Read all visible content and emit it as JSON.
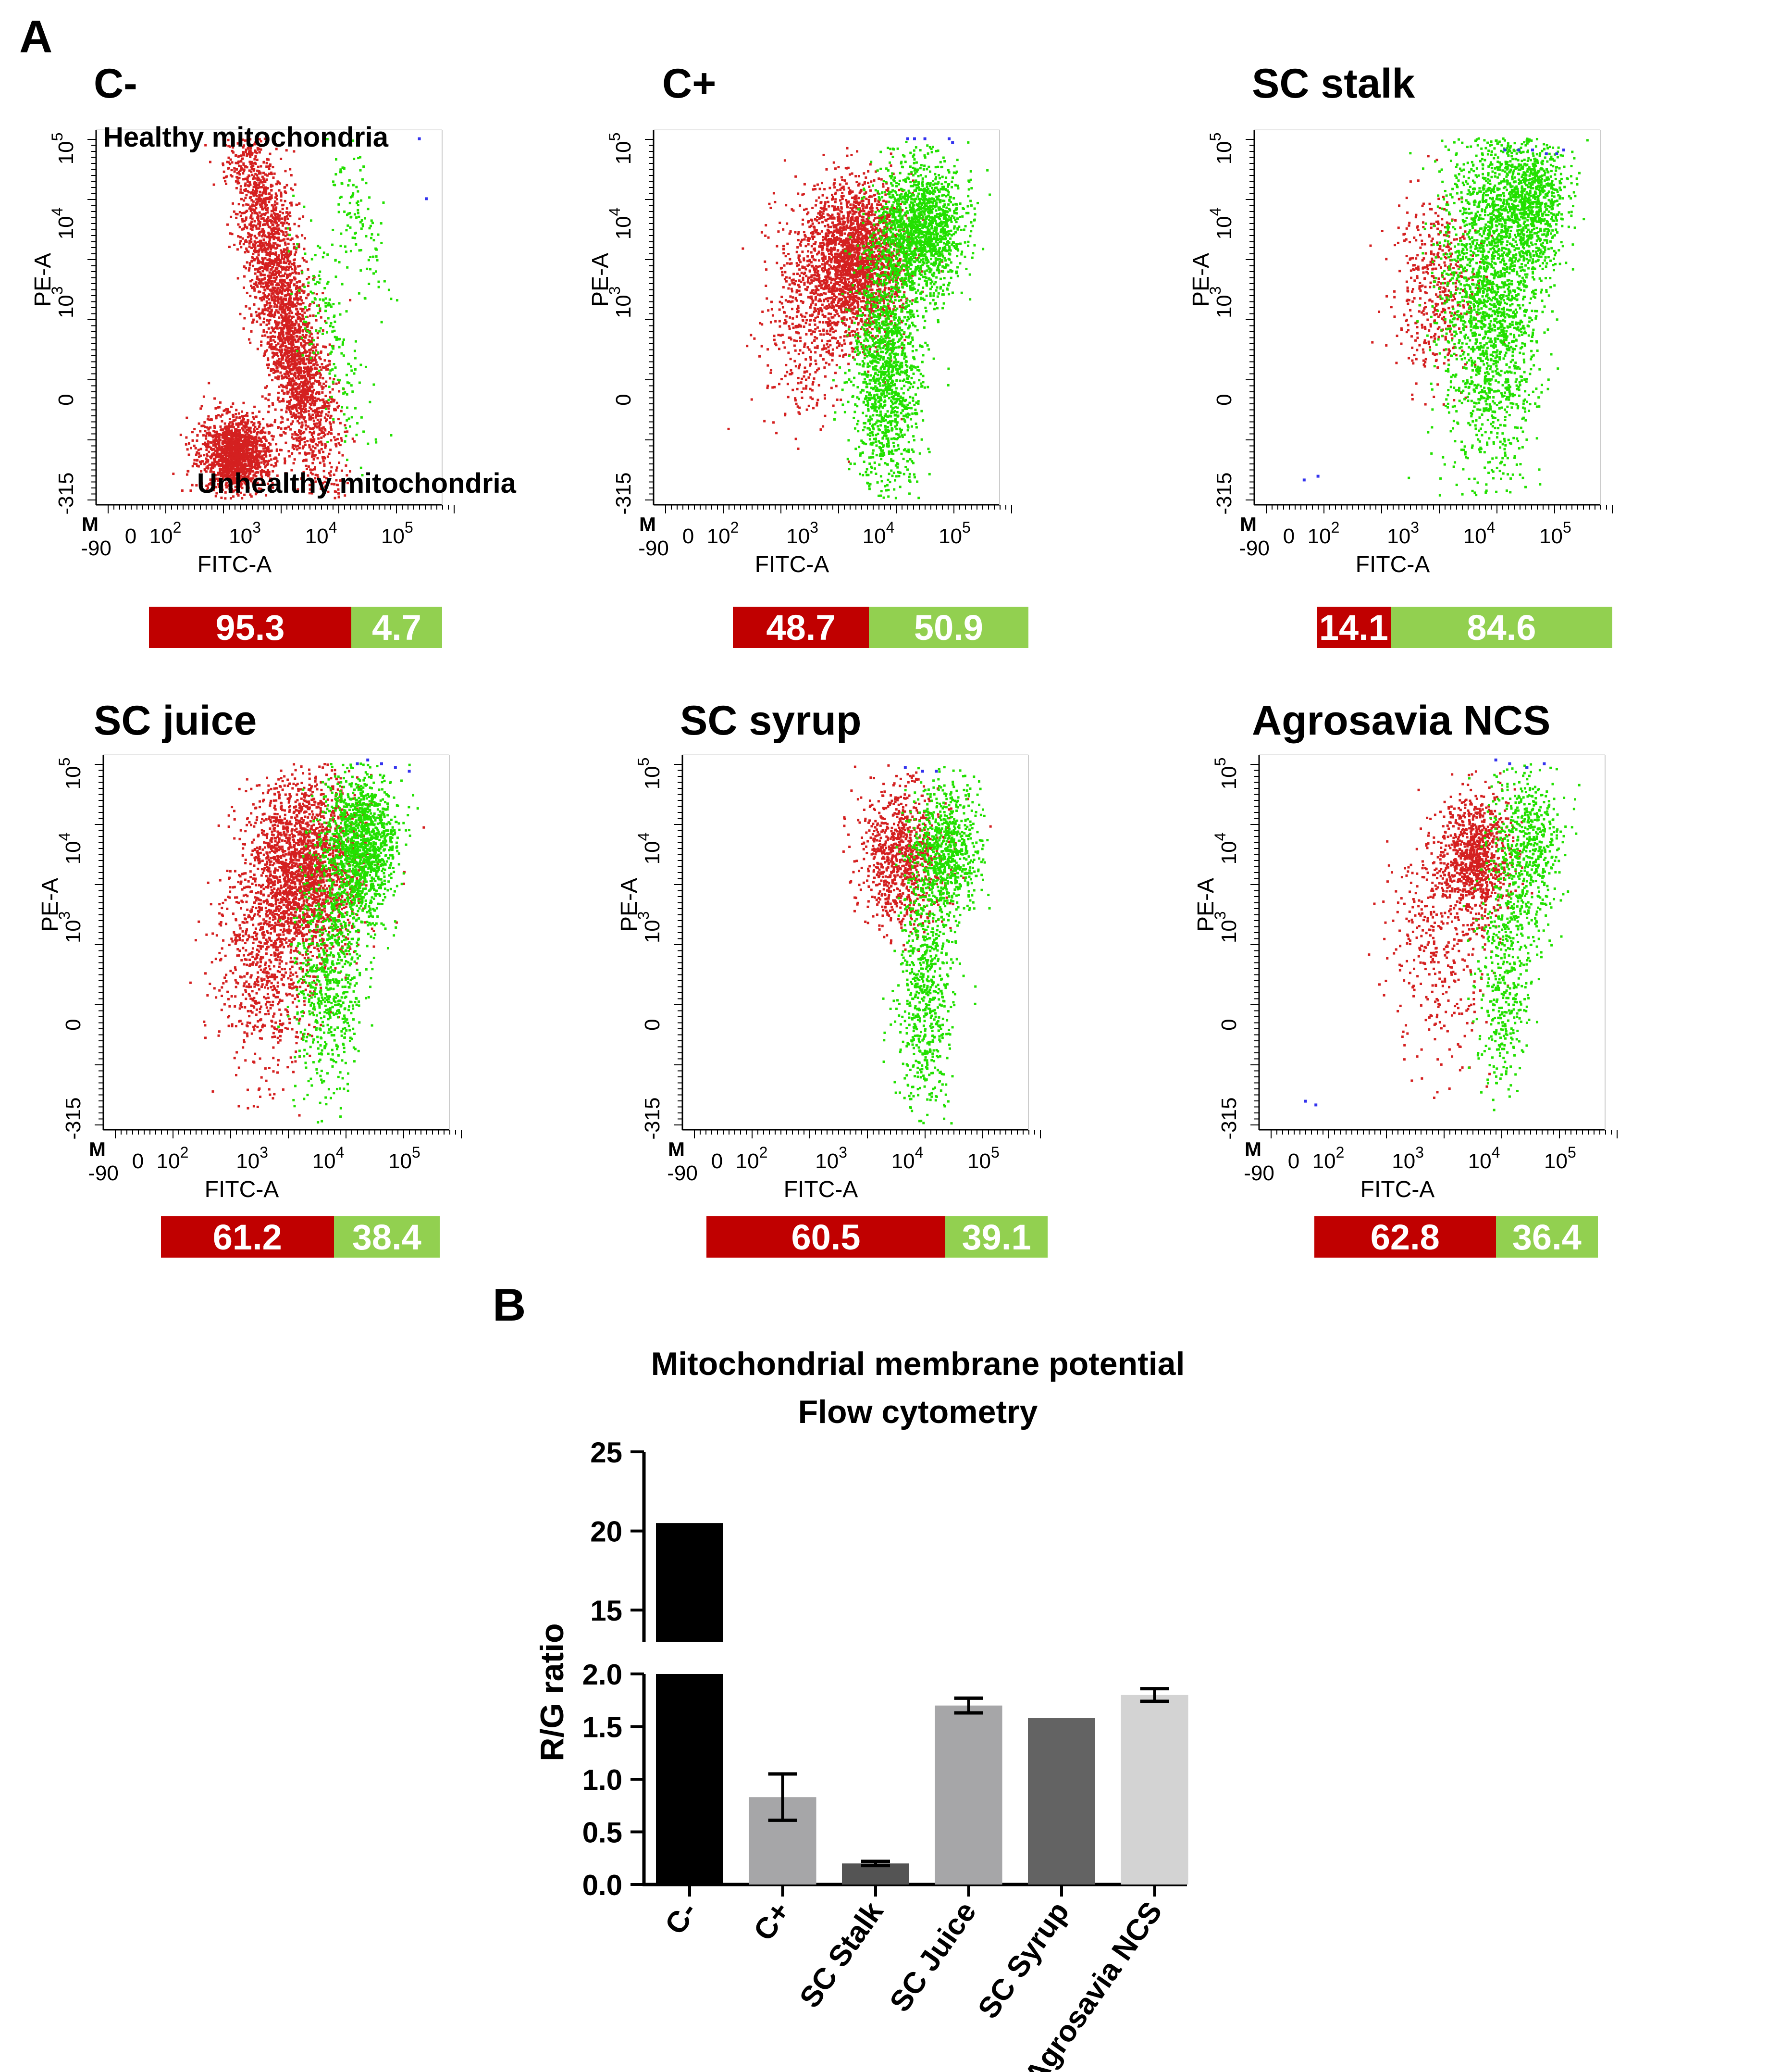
{
  "panels": {
    "a": "A",
    "b": "B"
  },
  "flow_plots": [
    {
      "title": "C-",
      "red": "95.3",
      "green": "4.7",
      "note_top": "Healthy mitochondria",
      "note_bottom": "Unhealthy mitochondria"
    },
    {
      "title": "C+",
      "red": "48.7",
      "green": "50.9"
    },
    {
      "title": "SC stalk",
      "red": "14.1",
      "green": "84.6"
    },
    {
      "title": "SC juice",
      "red": "61.2",
      "green": "38.4"
    },
    {
      "title": "SC syrup",
      "red": "60.5",
      "green": "39.1"
    },
    {
      "title": "Agrosavia NCS",
      "red": "62.8",
      "green": "36.4"
    }
  ],
  "flow_axes": {
    "xlabel": "FITC-A",
    "ylabel": "PE-A",
    "marker": "M",
    "x_ticks": [
      "-90",
      "0",
      "10",
      "10",
      "10",
      "10"
    ],
    "x_exps": [
      "",
      "",
      "2",
      "3",
      "4",
      "5"
    ],
    "y_ticks": [
      "-315",
      "0",
      "10",
      "10",
      "10"
    ],
    "y_exps": [
      "",
      "",
      "3",
      "4",
      "5"
    ]
  },
  "colors": {
    "red": "#c00000",
    "green": "#92d050",
    "dots_red": "#d42020",
    "dots_green": "#22e000",
    "dots_blue": "#3333ee"
  },
  "chart_data": {
    "type": "bar",
    "title": [
      "Mitochondrial membrane potential",
      "Flow cytometry"
    ],
    "ylabel": "R/G ratio",
    "categories": [
      "C-",
      "C+",
      "SC Stalk",
      "SC Juice",
      "SC Syrup",
      "Agrosavia NCS"
    ],
    "values": [
      20.5,
      0.83,
      0.2,
      1.7,
      1.58,
      1.8
    ],
    "errors": [
      0,
      0.22,
      0.02,
      0.07,
      0,
      0.06
    ],
    "bar_colors": [
      "#000000",
      "#a6a6a8",
      "#545454",
      "#a6a6a8",
      "#636363",
      "#d3d3d3"
    ],
    "ylim_lower": [
      0,
      2.0
    ],
    "ylim_upper": [
      13,
      25
    ],
    "yticks_lower": [
      "0.0",
      "0.5",
      "1.0",
      "1.5",
      "2.0"
    ],
    "yticks_upper": [
      "15",
      "20",
      "25"
    ]
  }
}
